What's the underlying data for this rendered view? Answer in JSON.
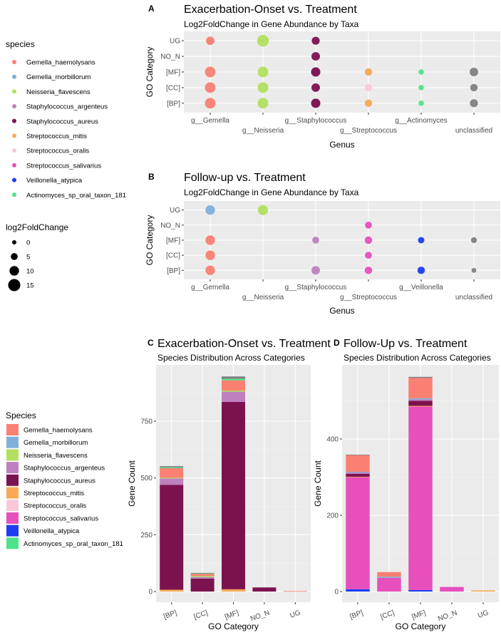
{
  "colors": {
    "Gemella_haemolysans": "#F98072",
    "Gemella_morbillorum": "#7FB0D8",
    "Neisseria_flavescens": "#B3DF5E",
    "Staphylococcus_argenteus": "#BE80BE",
    "Staphylococcus_aureus": "#7B1250",
    "Streptococcus_mitis": "#F9A955",
    "Streptococcus_oralis": "#F8C8DA",
    "Streptococcus_salivarius": "#E64FBC",
    "Veillonella_atypica": "#1E3CF2",
    "Actinomyces_sp_oral_taxon_181": "#4CE38C",
    "unclassified": "#7F7F7F"
  },
  "legend_species": {
    "title": "species",
    "items": [
      "Gemella_haemolysans",
      "Gemella_morbillorum",
      "Neisseria_flavescens",
      "Staphylococcus_argenteus",
      "Staphylococcus_aureus",
      "Streptococcus_mitis",
      "Streptococcus_oralis",
      "Streptococcus_salivarius",
      "Veillonella_atypica",
      "Actinomyces_sp_oral_taxon_181"
    ]
  },
  "legend_size": {
    "title": "log2FoldChange",
    "items": [
      0,
      5,
      10,
      15
    ]
  },
  "legend_species2": {
    "title": "Species",
    "items": [
      "Gemella_haemolysans",
      "Gemella_morbillorum",
      "Neisseria_flavescens",
      "Staphylococcus_argenteus",
      "Staphylococcus_aureus",
      "Streptococcus_mitis",
      "Streptococcus_oralis",
      "Streptococcus_salivarius",
      "Veillonella_atypica",
      "Actinomyces_sp_oral_taxon_181"
    ]
  },
  "chart_data": [
    {
      "tag": "A",
      "type": "scatter",
      "title": "Exacerbation-Onset vs. Treatment",
      "subtitle": "Log2FoldChange in Gene Abundance by Taxa",
      "xlabel": "Genus",
      "ylabel": "GO Category",
      "x_categories": [
        "g__Gemella",
        "g__Neisseria",
        "g__Staphylococcus",
        "g__Streptococcus",
        "g__Actinomyces",
        "unclassified"
      ],
      "y_categories": [
        "[BP]",
        "[CC]",
        "[MF]",
        "NO_N",
        "UG"
      ],
      "points": [
        {
          "x": "g__Gemella",
          "y": "UG",
          "species": "Gemella_haemolysans",
          "log2FoldChange": 8
        },
        {
          "x": "g__Gemella",
          "y": "[MF]",
          "species": "Gemella_haemolysans",
          "log2FoldChange": 12
        },
        {
          "x": "g__Gemella",
          "y": "[CC]",
          "species": "Gemella_haemolysans",
          "log2FoldChange": 12
        },
        {
          "x": "g__Gemella",
          "y": "[BP]",
          "species": "Gemella_haemolysans",
          "log2FoldChange": 12
        },
        {
          "x": "g__Neisseria",
          "y": "UG",
          "species": "Neisseria_flavescens",
          "log2FoldChange": 14
        },
        {
          "x": "g__Neisseria",
          "y": "[MF]",
          "species": "Neisseria_flavescens",
          "log2FoldChange": 12
        },
        {
          "x": "g__Neisseria",
          "y": "[CC]",
          "species": "Neisseria_flavescens",
          "log2FoldChange": 12
        },
        {
          "x": "g__Neisseria",
          "y": "[BP]",
          "species": "Neisseria_flavescens",
          "log2FoldChange": 12
        },
        {
          "x": "g__Staphylococcus",
          "y": "UG",
          "species": "Staphylococcus_aureus",
          "log2FoldChange": 7
        },
        {
          "x": "g__Staphylococcus",
          "y": "NO_N",
          "species": "Staphylococcus_aureus",
          "log2FoldChange": 8
        },
        {
          "x": "g__Staphylococcus",
          "y": "[MF]",
          "species": "Staphylococcus_argenteus",
          "log2FoldChange": 10
        },
        {
          "x": "g__Staphylococcus",
          "y": "[MF]",
          "species": "Staphylococcus_aureus",
          "log2FoldChange": 9
        },
        {
          "x": "g__Staphylococcus",
          "y": "[CC]",
          "species": "Staphylococcus_aureus",
          "log2FoldChange": 8
        },
        {
          "x": "g__Staphylococcus",
          "y": "[BP]",
          "species": "Staphylococcus_argenteus",
          "log2FoldChange": 10
        },
        {
          "x": "g__Staphylococcus",
          "y": "[BP]",
          "species": "Staphylococcus_aureus",
          "log2FoldChange": 9
        },
        {
          "x": "g__Streptococcus",
          "y": "[MF]",
          "species": "Streptococcus_mitis",
          "log2FoldChange": 6
        },
        {
          "x": "g__Streptococcus",
          "y": "[CC]",
          "species": "Streptococcus_oralis",
          "log2FoldChange": 6
        },
        {
          "x": "g__Streptococcus",
          "y": "[BP]",
          "species": "Streptococcus_mitis",
          "log2FoldChange": 6
        },
        {
          "x": "g__Actinomyces",
          "y": "[MF]",
          "species": "Actinomyces_sp_oral_taxon_181",
          "log2FoldChange": 2
        },
        {
          "x": "g__Actinomyces",
          "y": "[CC]",
          "species": "Actinomyces_sp_oral_taxon_181",
          "log2FoldChange": 2
        },
        {
          "x": "g__Actinomyces",
          "y": "[BP]",
          "species": "Actinomyces_sp_oral_taxon_181",
          "log2FoldChange": 2
        },
        {
          "x": "unclassified",
          "y": "[MF]",
          "species": "unclassified",
          "log2FoldChange": 8
        },
        {
          "x": "unclassified",
          "y": "[CC]",
          "species": "unclassified",
          "log2FoldChange": 6
        },
        {
          "x": "unclassified",
          "y": "[BP]",
          "species": "unclassified",
          "log2FoldChange": 7
        }
      ]
    },
    {
      "tag": "B",
      "type": "scatter",
      "title": "Follow-up vs. Treatment",
      "subtitle": "Log2FoldChange in Gene Abundance by Taxa",
      "xlabel": "Genus",
      "ylabel": "GO Category",
      "x_categories": [
        "g__Gemella",
        "g__Neisseria",
        "g__Staphylococcus",
        "g__Streptococcus",
        "g__Veillonella",
        "unclassified"
      ],
      "y_categories": [
        "[BP]",
        "[CC]",
        "[MF]",
        "NO_N",
        "UG"
      ],
      "points": [
        {
          "x": "g__Gemella",
          "y": "UG",
          "species": "Gemella_morbillorum",
          "log2FoldChange": 10
        },
        {
          "x": "g__Gemella",
          "y": "[MF]",
          "species": "Gemella_haemolysans",
          "log2FoldChange": 10
        },
        {
          "x": "g__Gemella",
          "y": "[CC]",
          "species": "Gemella_haemolysans",
          "log2FoldChange": 10
        },
        {
          "x": "g__Gemella",
          "y": "[BP]",
          "species": "Gemella_haemolysans",
          "log2FoldChange": 10
        },
        {
          "x": "g__Neisseria",
          "y": "UG",
          "species": "Neisseria_flavescens",
          "log2FoldChange": 11
        },
        {
          "x": "g__Staphylococcus",
          "y": "[MF]",
          "species": "Staphylococcus_argenteus",
          "log2FoldChange": 5
        },
        {
          "x": "g__Staphylococcus",
          "y": "[BP]",
          "species": "Staphylococcus_argenteus",
          "log2FoldChange": 8
        },
        {
          "x": "g__Streptococcus",
          "y": "NO_N",
          "species": "Streptococcus_salivarius",
          "log2FoldChange": 5
        },
        {
          "x": "g__Streptococcus",
          "y": "[MF]",
          "species": "Streptococcus_salivarius",
          "log2FoldChange": 6
        },
        {
          "x": "g__Streptococcus",
          "y": "[CC]",
          "species": "Streptococcus_salivarius",
          "log2FoldChange": 5
        },
        {
          "x": "g__Streptococcus",
          "y": "[BP]",
          "species": "Streptococcus_salivarius",
          "log2FoldChange": 6
        },
        {
          "x": "g__Veillonella",
          "y": "[MF]",
          "species": "Veillonella_atypica",
          "log2FoldChange": 4
        },
        {
          "x": "g__Veillonella",
          "y": "[BP]",
          "species": "Veillonella_atypica",
          "log2FoldChange": 6
        },
        {
          "x": "unclassified",
          "y": "[MF]",
          "species": "unclassified",
          "log2FoldChange": 3
        },
        {
          "x": "unclassified",
          "y": "[BP]",
          "species": "unclassified",
          "log2FoldChange": 1
        }
      ]
    },
    {
      "tag": "C",
      "type": "bar",
      "title": "Exacerbation-Onset vs. Treatment",
      "subtitle": "Species Distribution Across Categories",
      "xlabel": "GO Category",
      "ylabel": "Gene Count",
      "categories": [
        "[BP]",
        "[CC]",
        "[MF]",
        "NO_N",
        "UG"
      ],
      "ylim": [
        0,
        960
      ],
      "yticks": [
        0,
        250,
        500,
        750
      ],
      "stack_order": [
        "Streptococcus_mitis",
        "Staphylococcus_aureus",
        "Staphylococcus_argenteus",
        "Neisseria_flavescens",
        "Gemella_haemolysans",
        "Actinomyces_sp_oral_taxon_181",
        "unclassified"
      ],
      "series": [
        {
          "name": "Streptococcus_mitis",
          "values": [
            8,
            0,
            10,
            0,
            0
          ]
        },
        {
          "name": "Staphylococcus_aureus",
          "values": [
            462,
            57,
            825,
            18,
            0
          ]
        },
        {
          "name": "Staphylococcus_argenteus",
          "values": [
            28,
            7,
            45,
            0,
            0
          ]
        },
        {
          "name": "Neisseria_flavescens",
          "values": [
            3,
            5,
            5,
            0,
            0
          ]
        },
        {
          "name": "Gemella_haemolysans",
          "values": [
            42,
            9,
            45,
            0,
            2
          ]
        },
        {
          "name": "Actinomyces_sp_oral_taxon_181",
          "values": [
            4,
            3,
            7,
            0,
            0
          ]
        },
        {
          "name": "unclassified",
          "values": [
            5,
            1,
            10,
            0,
            0
          ]
        }
      ]
    },
    {
      "tag": "D",
      "type": "bar",
      "title": "Follow-Up vs. Treatment",
      "subtitle": "Species Distribution Across Categories",
      "xlabel": "GO Category",
      "ylabel": "Gene Count",
      "categories": [
        "[BP]",
        "[CC]",
        "[MF]",
        "NO_N",
        "UG"
      ],
      "ylim": [
        0,
        580
      ],
      "yticks": [
        0,
        200,
        400
      ],
      "series": [
        {
          "name": "Veillonella_atypica",
          "values": [
            6,
            0,
            4,
            0,
            0
          ]
        },
        {
          "name": "Streptococcus_salivarius",
          "values": [
            294,
            36,
            481,
            12,
            0
          ]
        },
        {
          "name": "Streptococcus_mitis",
          "values": [
            1,
            0,
            2,
            0,
            3
          ]
        },
        {
          "name": "Staphylococcus_aureus",
          "values": [
            8,
            0,
            13,
            0,
            0
          ]
        },
        {
          "name": "Staphylococcus_argenteus",
          "values": [
            3,
            0,
            4,
            0,
            0
          ]
        },
        {
          "name": "Gemella_morbillorum",
          "values": [
            2,
            3,
            3,
            0,
            0
          ]
        },
        {
          "name": "Gemella_haemolysans",
          "values": [
            44,
            12,
            53,
            0,
            0
          ]
        },
        {
          "name": "unclassified",
          "values": [
            1,
            0,
            3,
            0,
            0
          ]
        }
      ]
    }
  ]
}
